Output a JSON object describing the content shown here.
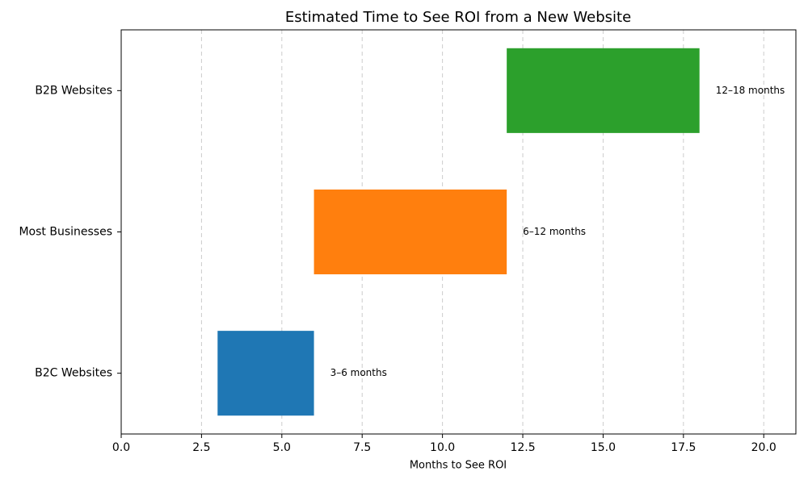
{
  "chart_data": {
    "type": "range-bar",
    "orientation": "horizontal",
    "title": "Estimated Time to See ROI from a New Website",
    "x_label": "Months to See ROI",
    "categories": [
      "B2C Websites",
      "Most Businesses",
      "B2B Websites"
    ],
    "starts": [
      3,
      6,
      12
    ],
    "ends": [
      6,
      12,
      18
    ],
    "value_labels": [
      "3–6 months",
      "6–12 months",
      "12–18 months"
    ],
    "colors": [
      "#1f77b4",
      "#ff7f0e",
      "#2ca02c"
    ],
    "xlim": [
      0,
      21
    ],
    "xticks": [
      {
        "value": 0,
        "label": "0.0"
      },
      2.5,
      {
        "value": 5,
        "label": "5.0"
      },
      7.5,
      {
        "value": 10,
        "label": "10.0"
      },
      12.5,
      {
        "value": 15,
        "label": "15.0"
      },
      17.5,
      {
        "value": 20,
        "label": "20.0"
      }
    ],
    "grid": true
  }
}
